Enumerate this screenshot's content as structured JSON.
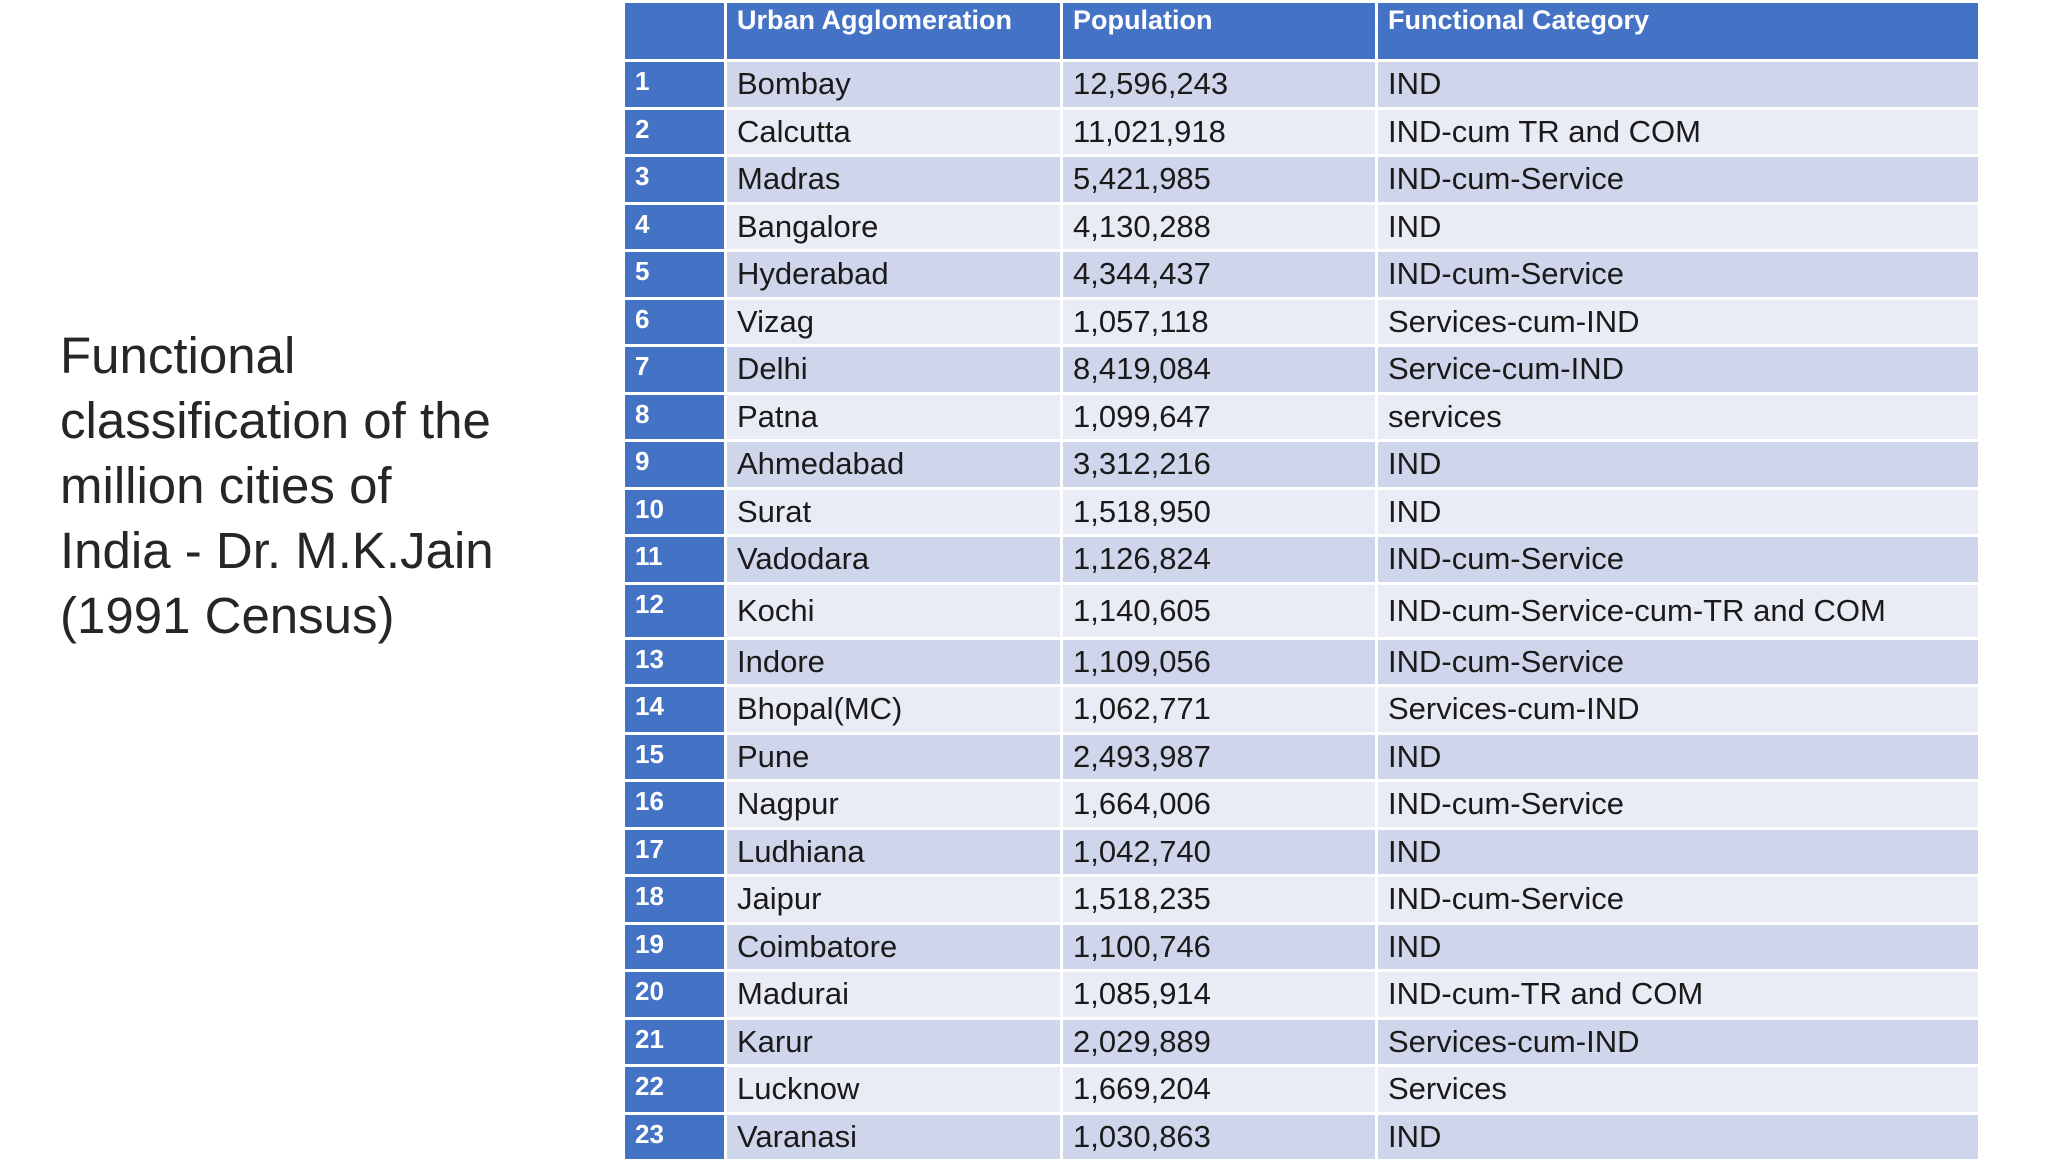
{
  "title": "Functional\nclassification of the\nmillion cities of\nIndia -  Dr. M.K.Jain\n(1991 Census)",
  "table": {
    "headers": [
      "",
      "Urban Agglomeration",
      "Population",
      "Functional Category"
    ],
    "rows": [
      [
        "1",
        "Bombay",
        "12,596,243",
        "IND"
      ],
      [
        "2",
        "Calcutta",
        "11,021,918",
        "IND-cum TR and COM"
      ],
      [
        "3",
        "Madras",
        "5,421,985",
        "IND-cum-Service"
      ],
      [
        "4",
        "Bangalore",
        "4,130,288",
        "IND"
      ],
      [
        "5",
        "Hyderabad",
        "4,344,437",
        "IND-cum-Service"
      ],
      [
        "6",
        "Vizag",
        "1,057,118",
        "Services-cum-IND"
      ],
      [
        "7",
        "Delhi",
        "8,419,084",
        "Service-cum-IND"
      ],
      [
        "8",
        "Patna",
        "1,099,647",
        "services"
      ],
      [
        "9",
        "Ahmedabad",
        "3,312,216",
        "IND"
      ],
      [
        "10",
        "Surat",
        "1,518,950",
        "IND"
      ],
      [
        "11",
        "Vadodara",
        "1,126,824",
        "IND-cum-Service"
      ],
      [
        "12",
        "Kochi",
        "1,140,605",
        "IND-cum-Service-cum-TR and COM"
      ],
      [
        "13",
        "Indore",
        "1,109,056",
        "IND-cum-Service"
      ],
      [
        "14",
        "Bhopal(MC)",
        "1,062,771",
        "Services-cum-IND"
      ],
      [
        "15",
        "Pune",
        "2,493,987",
        "IND"
      ],
      [
        "16",
        "Nagpur",
        "1,664,006",
        "IND-cum-Service"
      ],
      [
        "17",
        "Ludhiana",
        "1,042,740",
        "IND"
      ],
      [
        "18",
        "Jaipur",
        "1,518,235",
        "IND-cum-Service"
      ],
      [
        "19",
        "Coimbatore",
        "1,100,746",
        "IND"
      ],
      [
        "20",
        "Madurai",
        "1,085,914",
        "IND-cum-TR and COM"
      ],
      [
        "21",
        "Karur",
        "2,029,889",
        "Services-cum-IND"
      ],
      [
        "22",
        "Lucknow",
        "1,669,204",
        "Services"
      ],
      [
        "23",
        "Varanasi",
        "1,030,863",
        "IND"
      ]
    ]
  },
  "colors": {
    "header_blue": "#4472c4",
    "row_dark": "#cfd5ea",
    "row_light": "#e9ebf5",
    "title_text": "#262626"
  }
}
